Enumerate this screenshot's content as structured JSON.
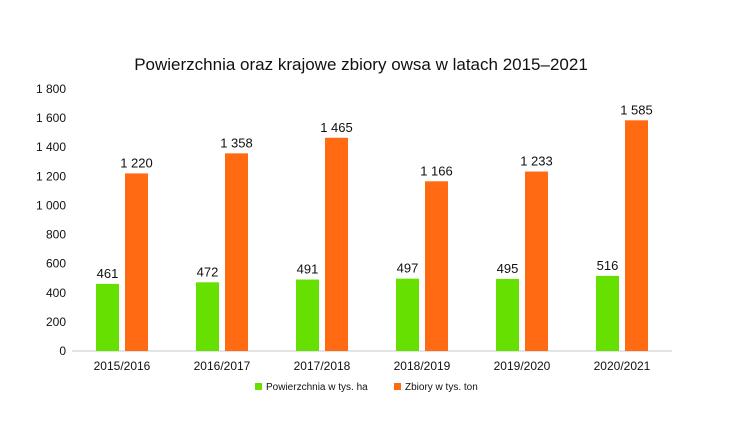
{
  "chart_data": {
    "type": "bar",
    "title": "Powierzchnia oraz krajowe zbiory owsa w latach 2015–2021",
    "categories": [
      "2015/2016",
      "2016/2017",
      "2017/2018",
      "2018/2019",
      "2019/2020",
      "2020/2021"
    ],
    "series": [
      {
        "name": "Powierzchnia w tys. ha",
        "color": "#66e000",
        "values": [
          461,
          472,
          491,
          497,
          495,
          516
        ],
        "labels": [
          "461",
          "472",
          "491",
          "497",
          "495",
          "516"
        ]
      },
      {
        "name": "Zbiory w tys. ton",
        "color": "#ff6a13",
        "values": [
          1220,
          1358,
          1465,
          1166,
          1233,
          1585
        ],
        "labels": [
          "1 220",
          "1 358",
          "1 465",
          "1 166",
          "1 233",
          "1 585"
        ]
      }
    ],
    "ylim": [
      0,
      1800
    ],
    "yticks": [
      0,
      200,
      400,
      600,
      800,
      1000,
      1200,
      1400,
      1600,
      1800
    ],
    "ytick_labels": [
      "0",
      "200",
      "400",
      "600",
      "800",
      "1 000",
      "1 200",
      "1 400",
      "1 600",
      "1 800"
    ],
    "grid": false,
    "legend_position": "bottom"
  }
}
